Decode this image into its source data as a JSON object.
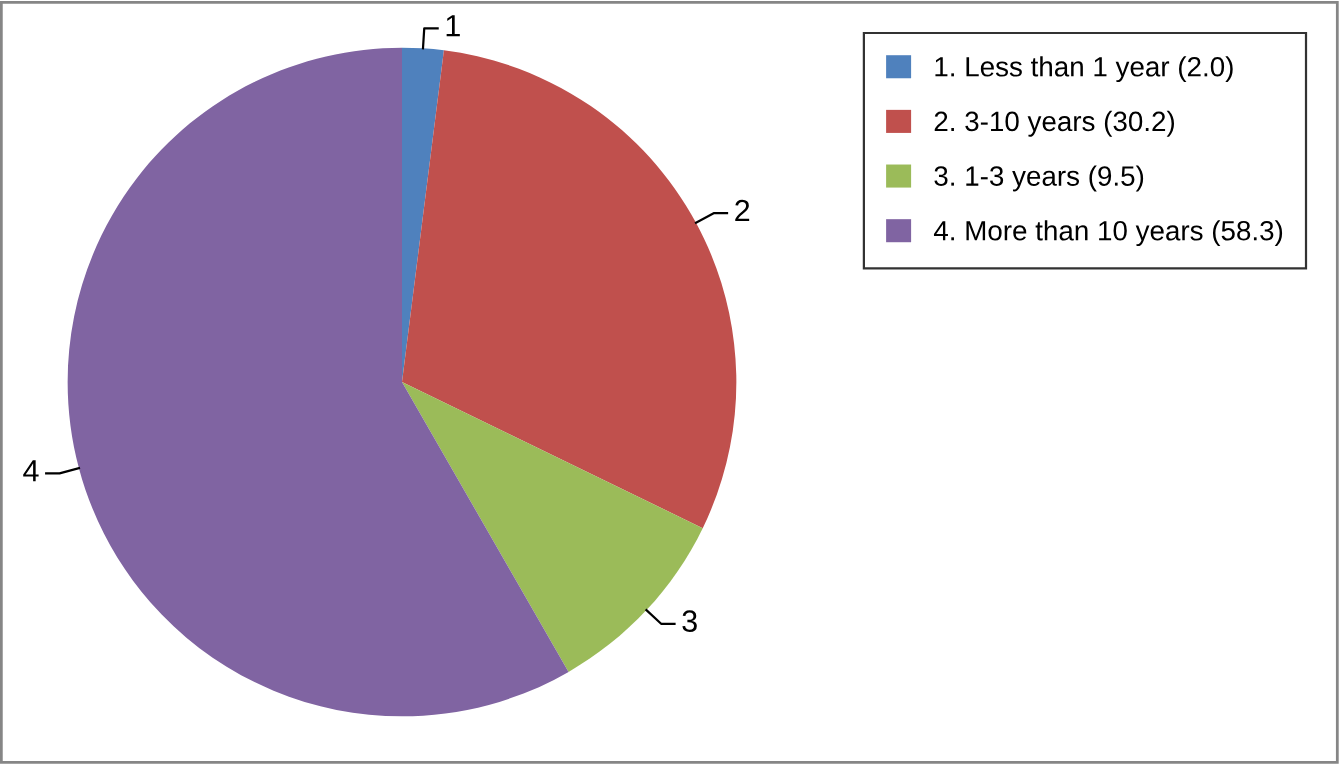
{
  "chart_data": {
    "type": "pie",
    "categories": [
      "1. Less than 1 year (2.0)",
      "2. 3-10 years (30.2)",
      "3. 1-3 years (9.5)",
      "4. More than 10 years (58.3)"
    ],
    "values": [
      2.0,
      30.2,
      9.5,
      58.3
    ],
    "colors": [
      "#4f81bd",
      "#c0504d",
      "#9bbb59",
      "#8064a2"
    ],
    "annotations": [
      "1",
      "2",
      "3",
      "4"
    ],
    "legend": "top right"
  }
}
